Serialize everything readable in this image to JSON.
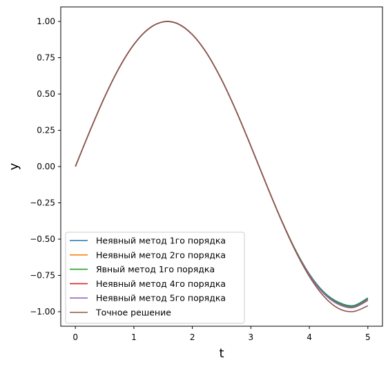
{
  "chart_data": {
    "type": "line",
    "title": "",
    "xlabel": "t",
    "ylabel": "y",
    "xlim": [
      -0.25,
      5.25
    ],
    "ylim": [
      -1.1,
      1.1
    ],
    "xticks": [
      0,
      1,
      2,
      3,
      4,
      5
    ],
    "xtick_labels": [
      "0",
      "1",
      "2",
      "3",
      "4",
      "5"
    ],
    "yticks": [
      1.0,
      0.75,
      0.5,
      0.25,
      0.0,
      -0.25,
      -0.5,
      -0.75,
      -1.0
    ],
    "ytick_labels": [
      "1.00",
      "0.75",
      "0.50",
      "0.25",
      "0.00",
      "−0.25",
      "−0.50",
      "−0.75",
      "−1.00"
    ],
    "grid": false,
    "legend_position": "lower-left",
    "x": [
      0.0,
      0.25,
      0.5,
      0.75,
      1.0,
      1.25,
      1.5,
      1.75,
      2.0,
      2.25,
      2.5,
      2.75,
      3.0,
      3.25,
      3.5,
      3.75,
      4.0,
      4.25,
      4.5,
      4.75,
      5.0
    ],
    "series": [
      {
        "name": "Неявный метод 1го порядка",
        "color": "#1f77b4",
        "values": [
          0.0,
          0.247,
          0.479,
          0.681,
          0.841,
          0.948,
          0.997,
          0.984,
          0.909,
          0.778,
          0.598,
          0.382,
          0.141,
          -0.108,
          -0.348,
          -0.564,
          -0.74,
          -0.865,
          -0.935,
          -0.958,
          -0.905
        ]
      },
      {
        "name": "Неявный метод 2го порядка",
        "color": "#ff7f0e",
        "values": [
          0.0,
          0.247,
          0.479,
          0.681,
          0.841,
          0.948,
          0.997,
          0.984,
          0.909,
          0.778,
          0.598,
          0.382,
          0.141,
          -0.108,
          -0.349,
          -0.567,
          -0.746,
          -0.874,
          -0.945,
          -0.966,
          -0.915
        ]
      },
      {
        "name": "Явный метод 1го порядка",
        "color": "#2ca02c",
        "values": [
          0.0,
          0.247,
          0.479,
          0.681,
          0.841,
          0.948,
          0.997,
          0.984,
          0.909,
          0.778,
          0.598,
          0.382,
          0.141,
          -0.108,
          -0.348,
          -0.565,
          -0.743,
          -0.869,
          -0.94,
          -0.962,
          -0.91
        ]
      },
      {
        "name": "Неявный метод 4го порядка",
        "color": "#d62728",
        "values": [
          0.0,
          0.247,
          0.479,
          0.681,
          0.841,
          0.949,
          0.997,
          0.984,
          0.909,
          0.778,
          0.598,
          0.382,
          0.141,
          -0.108,
          -0.35,
          -0.568,
          -0.748,
          -0.876,
          -0.948,
          -0.97,
          -0.92
        ]
      },
      {
        "name": "Неявный метод 5го порядка",
        "color": "#9467bd",
        "values": [
          0.0,
          0.247,
          0.479,
          0.681,
          0.841,
          0.949,
          0.997,
          0.984,
          0.909,
          0.778,
          0.598,
          0.382,
          0.141,
          -0.108,
          -0.35,
          -0.569,
          -0.749,
          -0.877,
          -0.95,
          -0.972,
          -0.923
        ]
      },
      {
        "name": "Точное решение",
        "color": "#8c564b",
        "values": [
          0.0,
          0.247,
          0.479,
          0.682,
          0.841,
          0.949,
          0.997,
          0.984,
          0.909,
          0.778,
          0.598,
          0.382,
          0.141,
          -0.108,
          -0.351,
          -0.572,
          -0.757,
          -0.895,
          -0.978,
          -0.999,
          -0.959
        ]
      }
    ]
  }
}
